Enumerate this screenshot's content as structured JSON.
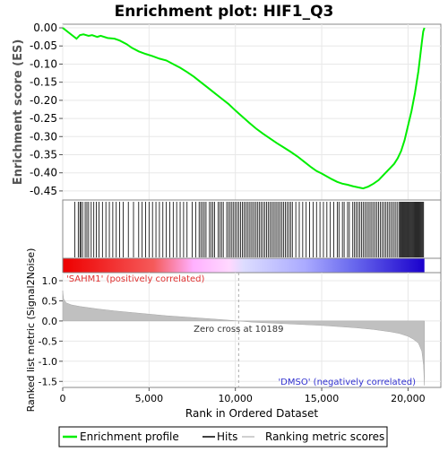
{
  "chart_data": {
    "type": "line",
    "title": "Enrichment plot: HIF1_Q3",
    "es_panel": {
      "ylabel": "Enrichment score (ES)",
      "ylim": [
        -0.475,
        0.01
      ],
      "yticks": [
        0.0,
        -0.05,
        -0.1,
        -0.15,
        -0.2,
        -0.25,
        -0.3,
        -0.35,
        -0.4,
        -0.45
      ],
      "ytick_labels": [
        "0.00",
        "-0.05",
        "-0.10",
        "-0.15",
        "-0.20",
        "-0.25",
        "-0.30",
        "-0.35",
        "-0.40",
        "-0.45"
      ],
      "line_color": "#00ee00",
      "series": [
        {
          "x": [
            0,
            400,
            800,
            1000,
            1200,
            1500,
            1700,
            2000,
            2200,
            2600,
            3000,
            3300,
            3700,
            4000,
            4400,
            4800,
            5200,
            5600,
            6000,
            6400,
            6800,
            7200,
            7600,
            8000,
            8400,
            8800,
            9200,
            9600,
            10000,
            10400,
            10800,
            11200,
            11600,
            12000,
            12400,
            12800,
            13200,
            13600,
            14000,
            14400,
            14700,
            15000,
            15300,
            15600,
            15900,
            16200,
            16500,
            16800,
            17100,
            17400,
            17700,
            18000,
            18300,
            18600,
            18800,
            19000,
            19200,
            19400,
            19600,
            19800,
            20000,
            20200,
            20400,
            20600,
            20700,
            20800,
            20880,
            20950
          ],
          "y": [
            0.0,
            -0.015,
            -0.03,
            -0.02,
            -0.018,
            -0.022,
            -0.02,
            -0.025,
            -0.022,
            -0.028,
            -0.03,
            -0.035,
            -0.045,
            -0.055,
            -0.065,
            -0.072,
            -0.078,
            -0.085,
            -0.09,
            -0.1,
            -0.11,
            -0.122,
            -0.135,
            -0.15,
            -0.165,
            -0.18,
            -0.195,
            -0.21,
            -0.228,
            -0.245,
            -0.262,
            -0.278,
            -0.292,
            -0.305,
            -0.318,
            -0.33,
            -0.342,
            -0.355,
            -0.37,
            -0.385,
            -0.395,
            -0.402,
            -0.41,
            -0.418,
            -0.425,
            -0.43,
            -0.433,
            -0.437,
            -0.44,
            -0.443,
            -0.438,
            -0.43,
            -0.42,
            -0.405,
            -0.395,
            -0.385,
            -0.375,
            -0.36,
            -0.34,
            -0.31,
            -0.27,
            -0.23,
            -0.18,
            -0.12,
            -0.08,
            -0.04,
            -0.01,
            0.0
          ]
        }
      ]
    },
    "hits": [
      700,
      900,
      1000,
      1050,
      1150,
      1300,
      1400,
      1500,
      1650,
      1800,
      1950,
      2100,
      2300,
      2500,
      2700,
      2900,
      3100,
      3300,
      3500,
      3800,
      4100,
      4400,
      4600,
      4800,
      5000,
      5200,
      5400,
      5600,
      5800,
      6000,
      6200,
      6400,
      6600,
      6800,
      7000,
      7200,
      7500,
      7700,
      7900,
      8000,
      8100,
      8200,
      8300,
      8500,
      8600,
      8700,
      8800,
      9000,
      9100,
      9200,
      9300,
      9500,
      9600,
      9700,
      9800,
      9900,
      10000,
      10100,
      10200,
      10300,
      10400,
      10500,
      10600,
      10700,
      10800,
      10900,
      11000,
      11100,
      11200,
      11300,
      11400,
      11500,
      11600,
      11700,
      11800,
      11900,
      12000,
      12100,
      12200,
      12300,
      12400,
      12500,
      12600,
      12700,
      12800,
      12900,
      13000,
      13100,
      13200,
      13300,
      13500,
      13700,
      13900,
      14100,
      14300,
      14500,
      14700,
      14900,
      15100,
      15300,
      15500,
      15700,
      15900,
      16000,
      16200,
      16300,
      16500,
      16600,
      16800,
      16900,
      17000,
      17100,
      17200,
      17300,
      17400,
      17500,
      17600,
      17700,
      17800,
      17900,
      18000,
      18100,
      18200,
      18300,
      18400,
      18500,
      18600,
      18700,
      18800,
      18900,
      19000,
      19100,
      19200,
      19300,
      19400,
      19500,
      19550,
      19600,
      19650,
      19700,
      19750,
      19800,
      19850,
      19900,
      19950,
      20000,
      20050,
      20100,
      20150,
      20200,
      20250,
      20300,
      20350,
      20400,
      20450,
      20500,
      20550,
      20600,
      20650,
      20700,
      20750,
      20800,
      20850,
      20900
    ],
    "metric_panel": {
      "ylabel": "Ranked list metric (Signal2Noise)",
      "ylim": [
        -1.65,
        1.2
      ],
      "yticks": [
        1.0,
        0.5,
        0.0,
        -0.5,
        -1.0,
        -1.5
      ],
      "ytick_labels": [
        "1.0",
        "0.5",
        "0.0",
        "-0.5",
        "-1.0",
        "-1.5"
      ],
      "fill_color": "#c0c0c0",
      "x": [
        0,
        50,
        200,
        500,
        1000,
        2000,
        3000,
        4000,
        5000,
        6000,
        7000,
        8000,
        9000,
        10189,
        11000,
        12000,
        13000,
        14000,
        15000,
        16000,
        17000,
        18000,
        19000,
        19500,
        20000,
        20300,
        20600,
        20800,
        20900,
        20950
      ],
      "y": [
        0.75,
        0.55,
        0.45,
        0.4,
        0.36,
        0.3,
        0.25,
        0.21,
        0.17,
        0.13,
        0.1,
        0.07,
        0.04,
        0.0,
        -0.03,
        -0.05,
        -0.07,
        -0.09,
        -0.11,
        -0.14,
        -0.17,
        -0.21,
        -0.27,
        -0.31,
        -0.38,
        -0.45,
        -0.55,
        -0.75,
        -1.1,
        -1.6
      ],
      "zero_cross_label": "Zero cross at 10189",
      "zero_cross": 10189,
      "pos_label": "'SAHM1' (positively correlated)",
      "neg_label": "'DMSO' (negatively correlated)"
    },
    "xlabel": "Rank in Ordered Dataset",
    "xlim": [
      0,
      21900
    ],
    "xticks": [
      0,
      5000,
      10000,
      15000,
      20000
    ],
    "xtick_labels": [
      "0",
      "5,000",
      "10,000",
      "15,000",
      "20,000"
    ],
    "total_genes": 20950,
    "legend": {
      "placement": "bottom",
      "items": [
        {
          "label": "Enrichment profile",
          "color": "#00ee00"
        },
        {
          "label": "Hits",
          "color": "#000000"
        },
        {
          "label": "Ranking metric scores",
          "color": "#c0c0c0"
        }
      ]
    }
  }
}
